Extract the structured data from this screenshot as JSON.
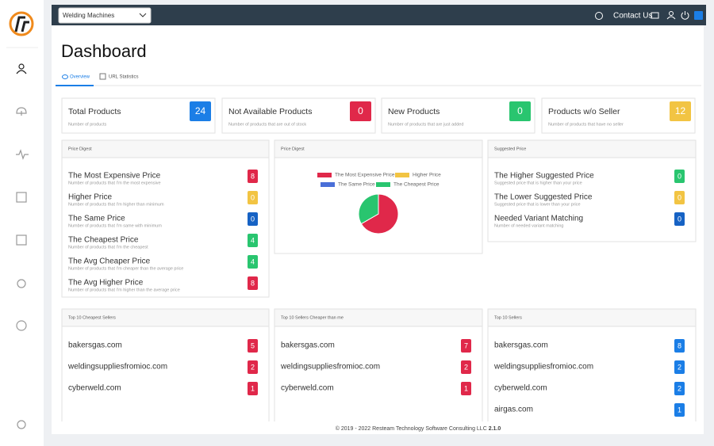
{
  "header": {
    "select": "Welding Machines",
    "contact": "Contact Us"
  },
  "page": {
    "title": "Dashboard",
    "tabs": [
      "Overview",
      "URL Statistics"
    ]
  },
  "cards": [
    {
      "title": "Total Products",
      "subtitle": "Number of products",
      "value": 24,
      "color": "#1b7ee6"
    },
    {
      "title": "Not Available Products",
      "subtitle": "Number of products that are out of stock",
      "value": 0,
      "color": "#e0284a"
    },
    {
      "title": "New Products",
      "subtitle": "Number of products that are just added",
      "value": 0,
      "color": "#29c56f"
    },
    {
      "title": "Products w/o Seller",
      "subtitle": "Number of products that have no seller",
      "value": 12,
      "color": "#f2c443"
    }
  ],
  "price_digest": {
    "title": "Price Digest",
    "items": [
      {
        "label": "The Most Expensive Price",
        "subtitle": "Number of products that I'm the most expensive",
        "value": 8,
        "color": "#e0284a"
      },
      {
        "label": "Higher Price",
        "subtitle": "Number of products that I'm higher than minimum",
        "value": 0,
        "color": "#f2c443"
      },
      {
        "label": "The Same Price",
        "subtitle": "Number of products that I'm same with minimum",
        "value": 0,
        "color": "#1662c4"
      },
      {
        "label": "The Cheapest Price",
        "subtitle": "Number of products that I'm the cheapest",
        "value": 4,
        "color": "#29c56f"
      },
      {
        "label": "The Avg Cheaper Price",
        "subtitle": "Number of products that I'm cheaper than the average price",
        "value": 4,
        "color": "#29c56f"
      },
      {
        "label": "The Avg Higher Price",
        "subtitle": "Number of products that I'm higher than the average price",
        "value": 8,
        "color": "#e0284a"
      }
    ]
  },
  "pie": {
    "title": "Price Digest",
    "series": [
      {
        "name": "The Most Expensive Price",
        "color": "#e0284a",
        "value": 8
      },
      {
        "name": "Higher Price",
        "color": "#f2c443",
        "value": 0
      },
      {
        "name": "The Same Price",
        "color": "#4a6fd8",
        "value": 0
      },
      {
        "name": "The Cheapest Price",
        "color": "#29c56f",
        "value": 4
      }
    ]
  },
  "suggested": {
    "title": "Suggested Price",
    "items": [
      {
        "label": "The Higher Suggested Price",
        "subtitle": "Suggested price that is higher than your price",
        "value": 0,
        "color": "#29c56f"
      },
      {
        "label": "The Lower Suggested Price",
        "subtitle": "Suggested price that is lower than your price",
        "value": 0,
        "color": "#f2c443"
      },
      {
        "label": "Needed Variant Matching",
        "subtitle": "Number of needed variant matching",
        "value": 0,
        "color": "#1662c4"
      }
    ]
  },
  "lists": [
    {
      "title": "Top 10 Cheapest Sellers",
      "items": [
        {
          "name": "bakersgas.com",
          "value": 5,
          "color": "#e0284a"
        },
        {
          "name": "weldingsuppliesfromioc.com",
          "value": 2,
          "color": "#e0284a"
        },
        {
          "name": "cyberweld.com",
          "value": 1,
          "color": "#e0284a"
        }
      ]
    },
    {
      "title": "Top 10 Sellers Cheaper than me",
      "items": [
        {
          "name": "bakersgas.com",
          "value": 7,
          "color": "#e0284a"
        },
        {
          "name": "weldingsuppliesfromioc.com",
          "value": 2,
          "color": "#e0284a"
        },
        {
          "name": "cyberweld.com",
          "value": 1,
          "color": "#e0284a"
        }
      ]
    },
    {
      "title": "Top 10 Sellers",
      "items": [
        {
          "name": "bakersgas.com",
          "value": 8,
          "color": "#1b7ee6"
        },
        {
          "name": "weldingsuppliesfromioc.com",
          "value": 2,
          "color": "#1b7ee6"
        },
        {
          "name": "cyberweld.com",
          "value": 2,
          "color": "#1b7ee6"
        },
        {
          "name": "airgas.com",
          "value": 1,
          "color": "#1b7ee6"
        }
      ]
    }
  ],
  "footer": {
    "text": "© 2019 - 2022 Resteam Technology Software Consulting LLC",
    "version": "2.1.0"
  }
}
